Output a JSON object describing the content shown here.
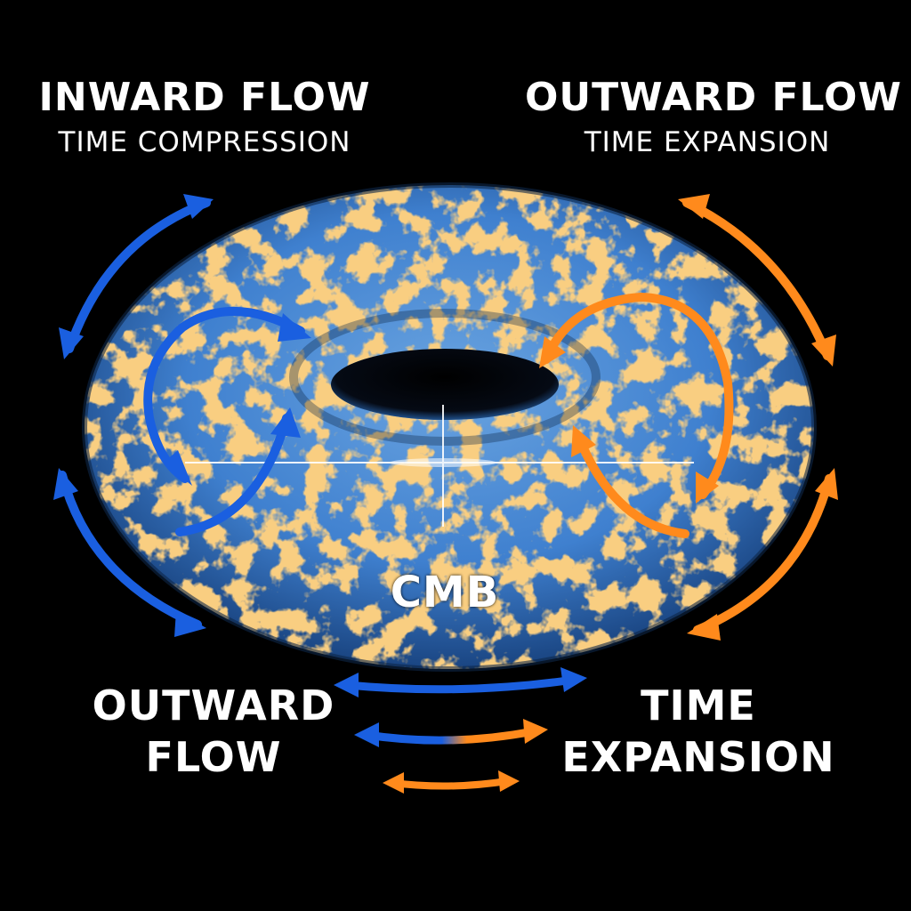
{
  "labels": {
    "inward_title": "INWARD FLOW",
    "inward_subtitle": "TIME COMPRESSION",
    "outward_title": "OUTWARD FLOW",
    "outward_subtitle": "TIME EXPANSION",
    "center": "CMB",
    "bottom_left_line1": "OUTWARD",
    "bottom_left_line2": "FLOW",
    "bottom_right_line1": "TIME",
    "bottom_right_line2": "EXPANSION"
  },
  "colors": {
    "background": "#000000",
    "blue": "#1a5fe0",
    "orange": "#ff8a1c",
    "torus_base": "#3b7fd0",
    "torus_speckle": "#e2a048"
  },
  "icons": {
    "torus": "cmb-torus",
    "arrows": "double-headed-arrow"
  }
}
